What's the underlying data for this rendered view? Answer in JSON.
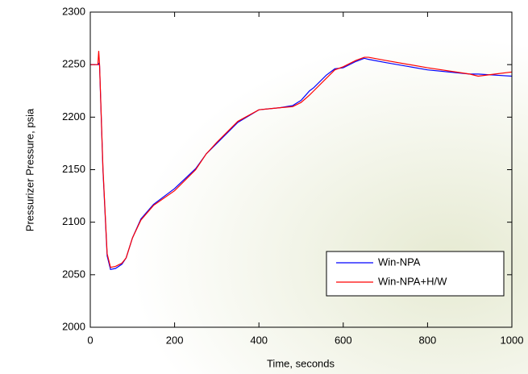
{
  "chart_data": {
    "type": "line",
    "xlabel": "Time, seconds",
    "ylabel": "Pressurizer Pressure, psia",
    "x": [
      0,
      18,
      20,
      22,
      30,
      40,
      48,
      60,
      75,
      85,
      100,
      120,
      150,
      200,
      250,
      275,
      300,
      350,
      400,
      450,
      480,
      500,
      520,
      530,
      560,
      580,
      600,
      630,
      650,
      660,
      700,
      800,
      900,
      920,
      960,
      1000
    ],
    "series": [
      {
        "name": "Win-NPA",
        "color": "#0000ff",
        "values": [
          2250,
          2250,
          2251,
          2249,
          2150,
          2068,
          2055,
          2056,
          2060,
          2066,
          2085,
          2103,
          2117,
          2132,
          2151,
          2165,
          2175,
          2195,
          2207,
          2209,
          2211,
          2216,
          2225,
          2228,
          2240,
          2246,
          2247,
          2253,
          2256,
          2255,
          2252,
          2245,
          2241,
          2241,
          2240,
          2239
        ]
      },
      {
        "name": "Win-NPA+H/W",
        "color": "#ff0000",
        "values": [
          2250,
          2250,
          2263,
          2250,
          2152,
          2070,
          2057,
          2058,
          2061,
          2066,
          2085,
          2102,
          2116,
          2130,
          2150,
          2165,
          2176,
          2196,
          2207,
          2209,
          2210,
          2214,
          2221,
          2225,
          2237,
          2245,
          2248,
          2254,
          2257,
          2257,
          2254,
          2247,
          2241,
          2239,
          2241,
          2243
        ]
      }
    ],
    "xlim": [
      0,
      1000
    ],
    "xticks": [
      0,
      200,
      400,
      600,
      800,
      1000
    ],
    "ylim": [
      2000,
      2300
    ],
    "yticks": [
      2000,
      2050,
      2100,
      2150,
      2200,
      2250,
      2300
    ],
    "legend": "lower right"
  }
}
